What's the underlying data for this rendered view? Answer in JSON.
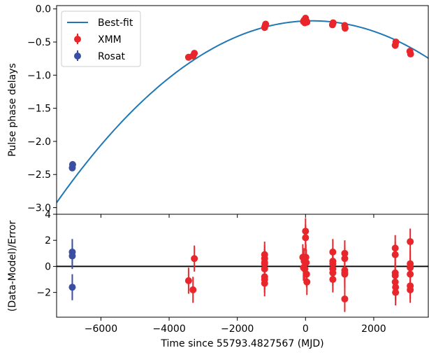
{
  "chart_data": [
    {
      "type": "scatter",
      "panel": "top",
      "title": "",
      "xlabel": "",
      "ylabel": "Pulse phase delays",
      "xlim": [
        -7300,
        3600
      ],
      "ylim": [
        -3.1,
        0.05
      ],
      "xticks": [
        -6000,
        -4000,
        -2000,
        0,
        2000
      ],
      "yticks": [
        0.0,
        -0.5,
        -1.0,
        -1.5,
        -2.0,
        -2.5,
        -3.0
      ],
      "ytick_labels": [
        "0.0",
        "−0.5",
        "−1.0",
        "−1.5",
        "−2.0",
        "−2.5",
        "−3.0"
      ],
      "legend": {
        "placement": "top-left",
        "entries": [
          "Best-fit",
          "XMM",
          "Rosat"
        ]
      },
      "series": [
        {
          "name": "Best-fit",
          "kind": "line",
          "color": "#1f77b4",
          "model": {
            "form": "quadratic",
            "peak_x": 200,
            "peak_y": -0.18,
            "curvature": -4.88e-08
          }
        },
        {
          "name": "XMM",
          "kind": "points",
          "color": "#e8262b",
          "x": [
            -3430,
            -3300,
            -3260,
            -1200,
            -1180,
            -1170,
            -60,
            -40,
            -20,
            0,
            20,
            40,
            790,
            810,
            1150,
            1160,
            2630,
            2650,
            3060,
            3080
          ],
          "y": [
            -0.73,
            -0.71,
            -0.67,
            -0.28,
            -0.25,
            -0.23,
            -0.19,
            -0.17,
            -0.21,
            -0.14,
            -0.18,
            -0.2,
            -0.24,
            -0.21,
            -0.25,
            -0.29,
            -0.55,
            -0.5,
            -0.64,
            -0.68
          ],
          "yerr": 0.04
        },
        {
          "name": "Rosat",
          "kind": "points",
          "color": "#3a4fa3",
          "x": [
            -6840,
            -6830
          ],
          "y": [
            -2.4,
            -2.35
          ],
          "yerr": 0.05
        }
      ]
    },
    {
      "type": "scatter",
      "panel": "bottom",
      "title": "",
      "xlabel": "Time since 55793.4827567 (MJD)",
      "ylabel": "(Data-Model)/Error",
      "xlim": [
        -7300,
        3600
      ],
      "ylim": [
        -3.9,
        4.0
      ],
      "xticks": [
        -6000,
        -4000,
        -2000,
        0,
        2000
      ],
      "xtick_labels": [
        "−6000",
        "−4000",
        "−2000",
        "0",
        "2000"
      ],
      "yticks": [
        4,
        2,
        0,
        -2
      ],
      "ytick_labels": [
        "4",
        "2",
        "0",
        "−2"
      ],
      "reference_line_y": 0,
      "series": [
        {
          "name": "XMM",
          "color": "#e8262b",
          "x": [
            -3430,
            -3300,
            -3260,
            -1200,
            -1200,
            -1200,
            -1200,
            -1200,
            -1200,
            -1200,
            -1200,
            -80,
            -60,
            -40,
            -20,
            0,
            0,
            10,
            20,
            30,
            40,
            800,
            800,
            800,
            800,
            800,
            800,
            1150,
            1150,
            1150,
            1150,
            1150,
            1150,
            2630,
            2630,
            2630,
            2630,
            2630,
            2640,
            2640,
            3070,
            3070,
            3070,
            3070,
            3070,
            3070
          ],
          "y": [
            -1.1,
            -1.8,
            0.6,
            0.9,
            0.6,
            0.2,
            -0.2,
            -0.8,
            -1.0,
            -1.3,
            0.3,
            0.7,
            -0.1,
            0.4,
            -0.2,
            2.7,
            2.2,
            0.7,
            0.3,
            -0.6,
            -1.2,
            1.1,
            0.4,
            0.2,
            -0.2,
            -0.5,
            -1.0,
            1.0,
            0.6,
            -0.3,
            -0.5,
            -0.6,
            -2.5,
            1.4,
            0.9,
            -0.5,
            -0.7,
            -1.2,
            -1.6,
            -2.0,
            1.9,
            0.2,
            -0.1,
            -0.6,
            -1.5,
            -1.8
          ],
          "yerr": 1.0
        },
        {
          "name": "Rosat",
          "color": "#3a4fa3",
          "x": [
            -6840,
            -6840,
            -6840
          ],
          "y": [
            1.1,
            0.8,
            -1.6
          ],
          "yerr": 1.0
        }
      ]
    }
  ]
}
